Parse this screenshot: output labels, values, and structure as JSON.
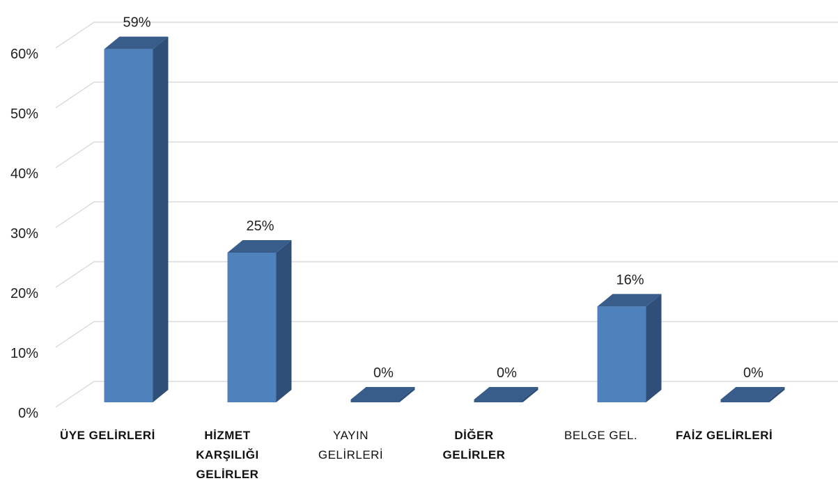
{
  "chart_data": {
    "type": "bar3d",
    "categories": [
      "ÜYE GELİRLERİ",
      "HİZMET KARŞILIĞI GELİRLER",
      "YAYIN GELİRLERİ",
      "DİĞER GELİRLER",
      "BELGE GEL.",
      "FAİZ GELİRLERİ"
    ],
    "values": [
      59,
      25,
      0,
      0,
      16,
      0
    ],
    "value_labels": [
      "59%",
      "25%",
      "0%",
      "0%",
      "16%",
      "0%"
    ],
    "color": "#4f81bd",
    "ylim": [
      0,
      60
    ],
    "yticks": [
      {
        "value": 0,
        "label": "0%"
      },
      {
        "value": 10,
        "label": "10%"
      },
      {
        "value": 20,
        "label": "20%"
      },
      {
        "value": 30,
        "label": "30%"
      },
      {
        "value": 40,
        "label": "40%"
      },
      {
        "value": 50,
        "label": "50%"
      },
      {
        "value": 60,
        "label": "60%"
      }
    ],
    "grid": true
  }
}
